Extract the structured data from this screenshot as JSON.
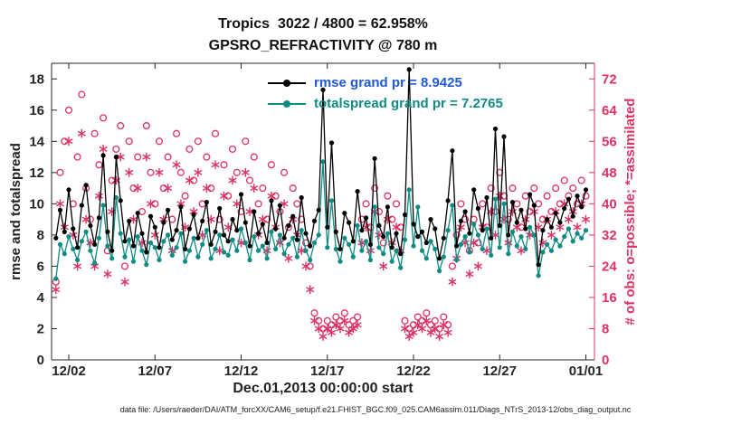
{
  "colors": {
    "axis": "#262626",
    "obs": "#de3163",
    "rmse_line": "#000000",
    "totalspread_line": "#0e8b84",
    "rmse_legend_text": "#2058d8",
    "plot_bg": "#ffffff"
  },
  "chart_data": {
    "type": "line",
    "title": "Tropics  3022 / 4800 = 62.958%",
    "subtitle": "GPSRO_REFRACTIVITY @ 780 m",
    "xlabel": "Dec.01,2013 00:00:00 start",
    "ylabel_left": "rmse and totalspread",
    "ylabel_right": "# of obs: o=possible; *=assimilated",
    "caption": "data file: /Users/raeder/DAI/ATM_forcXX/CAM6_setup/f.e21.FHIST_BGC.f09_025.CAM6assim.011/Diags_NTrS_2013-12/obs_diag_output.nc",
    "grid": false,
    "legend_position": "top-center",
    "x_start_day": 0.25,
    "x_step_days": 0.25,
    "xlim": [
      0,
      31.5
    ],
    "xticks": [
      {
        "day": 1,
        "label": "12/02"
      },
      {
        "day": 6,
        "label": "12/07"
      },
      {
        "day": 11,
        "label": "12/12"
      },
      {
        "day": 16,
        "label": "12/17"
      },
      {
        "day": 21,
        "label": "12/22"
      },
      {
        "day": 26,
        "label": "12/27"
      },
      {
        "day": 31,
        "label": "01/01"
      }
    ],
    "ylim_left": [
      0,
      19
    ],
    "yticks_left": [
      0,
      2,
      4,
      6,
      8,
      10,
      12,
      14,
      16,
      18
    ],
    "ylim_right": [
      0,
      76
    ],
    "yticks_right": [
      0,
      8,
      16,
      24,
      32,
      40,
      48,
      56,
      64,
      72
    ],
    "series": [
      {
        "name": "rmse",
        "legend": "rmse grand pr = 8.9425",
        "grand_value": 8.9425,
        "color": "#000000",
        "legend_text_color": "#2058d8",
        "values": [
          7.8,
          9.6,
          8.2,
          10.9,
          8.4,
          7.2,
          9.9,
          11.2,
          8.6,
          7.4,
          9.1,
          13.1,
          8.2,
          7.0,
          13.0,
          10.2,
          7.6,
          8.9,
          7.3,
          9.4,
          8.1,
          6.9,
          9.2,
          8.5,
          7.2,
          8.8,
          9.6,
          7.7,
          8.3,
          9.8,
          7.1,
          8.4,
          9.3,
          7.8,
          8.9,
          10.1,
          7.4,
          8.2,
          9.7,
          8.0,
          7.6,
          9.0,
          8.3,
          10.6,
          8.8,
          7.3,
          9.5,
          8.1,
          8.7,
          7.5,
          10.2,
          8.4,
          9.9,
          7.8,
          8.6,
          9.2,
          7.7,
          10.4,
          8.1,
          7.3,
          8.9,
          9.6,
          17.3,
          8.5,
          13.9,
          8.2,
          7.1,
          9.4,
          8.8,
          7.6,
          10.8,
          8.3,
          9.1,
          7.4,
          12.9,
          8.6,
          7.9,
          9.8,
          7.2,
          8.1,
          6.8,
          9.3,
          18.6,
          8.7,
          7.9,
          8.2,
          7.5,
          9.0,
          8.4,
          6.5,
          7.8,
          10.2,
          13.4,
          7.3,
          8.9,
          9.5,
          8.1,
          10.9,
          9.7,
          8.3,
          10.4,
          7.8,
          14.8,
          8.6,
          14.3,
          8.0,
          10.1,
          8.8,
          9.6,
          8.4,
          10.6,
          9.9,
          6.1,
          8.3,
          9.0,
          8.5,
          9.4,
          8.8,
          9.7,
          10.3,
          9.2,
          10.5,
          9.8,
          10.9
        ]
      },
      {
        "name": "totalspread",
        "legend": "totalspread grand pr = 7.2765",
        "grand_value": 7.2765,
        "color": "#0e8b84",
        "legend_text_color": "#0e8b84",
        "values": [
          5.2,
          7.4,
          6.8,
          7.9,
          7.1,
          6.4,
          7.6,
          8.2,
          7.0,
          6.2,
          7.8,
          9.9,
          7.3,
          6.5,
          10.4,
          8.1,
          6.6,
          7.7,
          6.3,
          7.9,
          7.0,
          6.1,
          7.5,
          7.2,
          6.4,
          7.6,
          8.0,
          6.7,
          7.2,
          8.1,
          6.3,
          7.0,
          7.8,
          6.6,
          7.4,
          8.3,
          6.5,
          7.1,
          8.0,
          6.9,
          6.7,
          7.7,
          7.0,
          8.4,
          7.5,
          6.4,
          7.9,
          7.0,
          7.3,
          6.5,
          8.2,
          7.1,
          8.0,
          6.8,
          7.4,
          7.8,
          6.6,
          8.3,
          7.0,
          6.4,
          7.5,
          8.0,
          12.7,
          7.2,
          10.2,
          7.1,
          6.3,
          7.8,
          7.4,
          6.6,
          8.6,
          7.0,
          7.6,
          6.4,
          9.8,
          7.2,
          6.8,
          8.1,
          6.3,
          7.0,
          5.9,
          7.7,
          10.9,
          7.3,
          9.8,
          7.0,
          6.5,
          7.6,
          7.1,
          5.7,
          6.6,
          8.3,
          9.9,
          6.4,
          7.4,
          7.9,
          6.9,
          8.7,
          8.0,
          7.1,
          8.4,
          6.7,
          10.3,
          7.2,
          10.0,
          6.8,
          8.2,
          7.3,
          7.9,
          7.1,
          8.5,
          8.0,
          5.4,
          6.9,
          7.4,
          7.0,
          7.7,
          7.3,
          7.9,
          8.4,
          7.6,
          8.1,
          7.8,
          8.3
        ]
      }
    ],
    "obs_markers": {
      "axis": "right",
      "color": "#de3163",
      "possible_marker": "circle",
      "assimilated_marker": "asterisk",
      "possible": [
        20,
        48,
        56,
        64,
        40,
        52,
        68,
        44,
        36,
        58,
        50,
        62,
        28,
        46,
        54,
        60,
        24,
        56,
        44,
        52,
        38,
        60,
        48,
        40,
        56,
        44,
        52,
        36,
        58,
        48,
        42,
        54,
        46,
        56,
        40,
        52,
        44,
        58,
        36,
        50,
        42,
        54,
        48,
        38,
        56,
        46,
        52,
        40,
        44,
        36,
        50,
        42,
        38,
        48,
        34,
        44,
        40,
        36,
        30,
        24,
        12,
        10,
        8,
        10,
        9,
        11,
        10,
        12,
        9,
        10,
        11,
        36,
        40,
        34,
        44,
        38,
        30,
        42,
        36,
        40,
        34,
        10,
        8,
        9,
        11,
        10,
        12,
        9,
        10,
        8,
        11,
        9,
        24,
        32,
        40,
        36,
        28,
        36,
        30,
        40,
        34,
        44,
        38,
        48,
        42,
        36,
        44,
        40,
        34,
        42,
        38,
        44,
        40,
        36,
        42,
        38,
        44,
        40,
        46,
        42,
        44,
        40,
        46,
        42
      ],
      "assimilated": [
        18,
        40,
        34,
        56,
        32,
        24,
        58,
        36,
        30,
        24,
        42,
        54,
        22,
        38,
        46,
        52,
        20,
        48,
        36,
        44,
        30,
        52,
        40,
        32,
        48,
        36,
        44,
        28,
        50,
        40,
        34,
        46,
        38,
        48,
        32,
        44,
        36,
        50,
        28,
        42,
        34,
        46,
        40,
        30,
        48,
        38,
        44,
        32,
        36,
        28,
        42,
        34,
        30,
        40,
        26,
        36,
        32,
        28,
        24,
        18,
        10,
        8,
        6,
        8,
        7,
        9,
        8,
        10,
        7,
        8,
        9,
        30,
        34,
        28,
        38,
        32,
        24,
        36,
        30,
        34,
        28,
        8,
        6,
        7,
        9,
        8,
        10,
        7,
        8,
        6,
        9,
        7,
        20,
        26,
        34,
        30,
        22,
        30,
        24,
        34,
        28,
        38,
        32,
        42,
        36,
        30,
        38,
        34,
        28,
        36,
        32,
        38,
        34,
        30,
        36,
        32,
        38,
        34,
        40,
        36,
        38,
        34,
        40,
        36
      ]
    }
  }
}
